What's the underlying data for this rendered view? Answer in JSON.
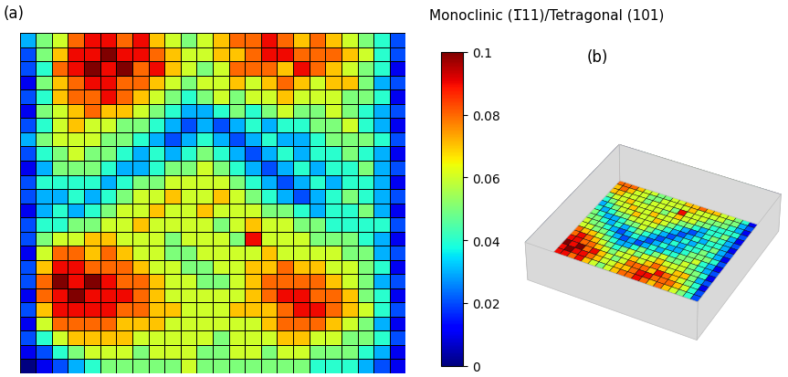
{
  "chart_data": {
    "type": "heatmap",
    "title": "Monoclinic (1̅11)/Tetragonal (101)",
    "panels": [
      "(a)",
      "(b)"
    ],
    "tick_labels": false,
    "colorbar_range": [
      0,
      0.1
    ],
    "colorbar_ticks": [
      0,
      0.02,
      0.04,
      0.06,
      0.08,
      0.1
    ],
    "cells": [
      [
        0.03,
        0.05,
        0.06,
        0.08,
        0.09,
        0.09,
        0.08,
        0.09,
        0.07,
        0.06,
        0.05,
        0.06,
        0.07,
        0.08,
        0.08,
        0.09,
        0.08,
        0.07,
        0.08,
        0.07,
        0.06,
        0.05,
        0.04,
        0.02
      ],
      [
        0.02,
        0.05,
        0.07,
        0.09,
        0.09,
        0.1,
        0.09,
        0.09,
        0.08,
        0.07,
        0.06,
        0.06,
        0.07,
        0.07,
        0.08,
        0.09,
        0.09,
        0.08,
        0.08,
        0.08,
        0.07,
        0.06,
        0.04,
        0.02
      ],
      [
        0.02,
        0.04,
        0.08,
        0.09,
        0.1,
        0.09,
        0.1,
        0.08,
        0.09,
        0.07,
        0.06,
        0.05,
        0.06,
        0.08,
        0.08,
        0.08,
        0.07,
        0.09,
        0.08,
        0.07,
        0.06,
        0.05,
        0.04,
        0.01
      ],
      [
        0.01,
        0.05,
        0.07,
        0.08,
        0.09,
        0.09,
        0.08,
        0.08,
        0.07,
        0.06,
        0.05,
        0.06,
        0.06,
        0.07,
        0.06,
        0.07,
        0.08,
        0.07,
        0.06,
        0.07,
        0.07,
        0.05,
        0.03,
        0.02
      ],
      [
        0.02,
        0.04,
        0.07,
        0.08,
        0.08,
        0.09,
        0.08,
        0.07,
        0.06,
        0.05,
        0.04,
        0.05,
        0.06,
        0.05,
        0.06,
        0.06,
        0.07,
        0.06,
        0.06,
        0.06,
        0.05,
        0.05,
        0.04,
        0.01
      ],
      [
        0.01,
        0.05,
        0.06,
        0.07,
        0.08,
        0.07,
        0.07,
        0.06,
        0.05,
        0.04,
        0.03,
        0.03,
        0.04,
        0.05,
        0.04,
        0.05,
        0.06,
        0.05,
        0.05,
        0.06,
        0.05,
        0.04,
        0.03,
        0.02
      ],
      [
        0.02,
        0.04,
        0.06,
        0.07,
        0.06,
        0.06,
        0.05,
        0.05,
        0.04,
        0.03,
        0.02,
        0.03,
        0.02,
        0.03,
        0.04,
        0.03,
        0.04,
        0.04,
        0.05,
        0.05,
        0.06,
        0.04,
        0.03,
        0.01
      ],
      [
        0.03,
        0.05,
        0.06,
        0.06,
        0.06,
        0.05,
        0.05,
        0.04,
        0.03,
        0.02,
        0.03,
        0.04,
        0.03,
        0.02,
        0.03,
        0.04,
        0.03,
        0.03,
        0.04,
        0.05,
        0.05,
        0.05,
        0.04,
        0.02
      ],
      [
        0.02,
        0.04,
        0.05,
        0.06,
        0.05,
        0.05,
        0.04,
        0.03,
        0.04,
        0.03,
        0.04,
        0.05,
        0.04,
        0.03,
        0.02,
        0.03,
        0.04,
        0.03,
        0.04,
        0.04,
        0.05,
        0.04,
        0.03,
        0.01
      ],
      [
        0.01,
        0.03,
        0.05,
        0.05,
        0.05,
        0.04,
        0.03,
        0.03,
        0.04,
        0.05,
        0.05,
        0.06,
        0.05,
        0.04,
        0.03,
        0.02,
        0.03,
        0.04,
        0.03,
        0.04,
        0.04,
        0.05,
        0.03,
        0.02
      ],
      [
        0.02,
        0.04,
        0.04,
        0.04,
        0.04,
        0.03,
        0.04,
        0.05,
        0.05,
        0.06,
        0.06,
        0.06,
        0.06,
        0.05,
        0.04,
        0.03,
        0.02,
        0.03,
        0.04,
        0.03,
        0.04,
        0.04,
        0.03,
        0.01
      ],
      [
        0.02,
        0.03,
        0.03,
        0.04,
        0.03,
        0.04,
        0.05,
        0.06,
        0.06,
        0.07,
        0.06,
        0.06,
        0.07,
        0.06,
        0.05,
        0.04,
        0.03,
        0.02,
        0.03,
        0.04,
        0.05,
        0.04,
        0.03,
        0.02
      ],
      [
        0.01,
        0.03,
        0.04,
        0.03,
        0.04,
        0.05,
        0.06,
        0.06,
        0.07,
        0.06,
        0.06,
        0.07,
        0.06,
        0.06,
        0.06,
        0.05,
        0.05,
        0.04,
        0.03,
        0.04,
        0.04,
        0.05,
        0.03,
        0.01
      ],
      [
        0.02,
        0.04,
        0.04,
        0.05,
        0.05,
        0.06,
        0.06,
        0.07,
        0.06,
        0.06,
        0.06,
        0.06,
        0.05,
        0.06,
        0.07,
        0.06,
        0.06,
        0.05,
        0.05,
        0.04,
        0.04,
        0.04,
        0.04,
        0.02
      ],
      [
        0.02,
        0.05,
        0.06,
        0.06,
        0.07,
        0.07,
        0.06,
        0.06,
        0.06,
        0.05,
        0.06,
        0.06,
        0.06,
        0.05,
        0.09,
        0.06,
        0.06,
        0.06,
        0.05,
        0.05,
        0.05,
        0.04,
        0.03,
        0.01
      ],
      [
        0.01,
        0.06,
        0.08,
        0.08,
        0.07,
        0.08,
        0.07,
        0.06,
        0.06,
        0.05,
        0.05,
        0.06,
        0.06,
        0.06,
        0.06,
        0.07,
        0.06,
        0.06,
        0.06,
        0.06,
        0.05,
        0.05,
        0.03,
        0.02
      ],
      [
        0.02,
        0.07,
        0.09,
        0.09,
        0.08,
        0.08,
        0.08,
        0.07,
        0.06,
        0.06,
        0.05,
        0.05,
        0.06,
        0.06,
        0.07,
        0.07,
        0.08,
        0.07,
        0.07,
        0.06,
        0.06,
        0.05,
        0.04,
        0.01
      ],
      [
        0.02,
        0.08,
        0.1,
        0.09,
        0.1,
        0.09,
        0.08,
        0.08,
        0.07,
        0.06,
        0.06,
        0.05,
        0.05,
        0.06,
        0.07,
        0.08,
        0.08,
        0.08,
        0.08,
        0.07,
        0.06,
        0.05,
        0.03,
        0.02
      ],
      [
        0.01,
        0.08,
        0.09,
        0.1,
        0.09,
        0.09,
        0.09,
        0.08,
        0.07,
        0.06,
        0.06,
        0.06,
        0.06,
        0.06,
        0.07,
        0.08,
        0.09,
        0.09,
        0.08,
        0.08,
        0.07,
        0.05,
        0.04,
        0.01
      ],
      [
        0.02,
        0.07,
        0.09,
        0.09,
        0.09,
        0.09,
        0.08,
        0.08,
        0.07,
        0.07,
        0.06,
        0.06,
        0.06,
        0.07,
        0.07,
        0.07,
        0.08,
        0.09,
        0.09,
        0.08,
        0.07,
        0.06,
        0.04,
        0.02
      ],
      [
        0.01,
        0.06,
        0.08,
        0.08,
        0.08,
        0.08,
        0.07,
        0.07,
        0.07,
        0.06,
        0.06,
        0.06,
        0.06,
        0.06,
        0.06,
        0.07,
        0.08,
        0.08,
        0.08,
        0.07,
        0.06,
        0.05,
        0.03,
        0.01
      ],
      [
        0.02,
        0.04,
        0.06,
        0.07,
        0.07,
        0.07,
        0.07,
        0.06,
        0.06,
        0.06,
        0.06,
        0.06,
        0.05,
        0.06,
        0.06,
        0.06,
        0.07,
        0.07,
        0.06,
        0.06,
        0.05,
        0.05,
        0.04,
        0.02
      ],
      [
        0.01,
        0.02,
        0.04,
        0.05,
        0.06,
        0.06,
        0.06,
        0.05,
        0.06,
        0.06,
        0.06,
        0.05,
        0.05,
        0.06,
        0.06,
        0.05,
        0.06,
        0.06,
        0.05,
        0.05,
        0.05,
        0.04,
        0.03,
        0.01
      ],
      [
        0.0,
        0.01,
        0.02,
        0.03,
        0.04,
        0.05,
        0.05,
        0.05,
        0.05,
        0.05,
        0.06,
        0.05,
        0.05,
        0.05,
        0.05,
        0.05,
        0.05,
        0.05,
        0.04,
        0.04,
        0.04,
        0.03,
        0.02,
        0.01
      ]
    ]
  }
}
